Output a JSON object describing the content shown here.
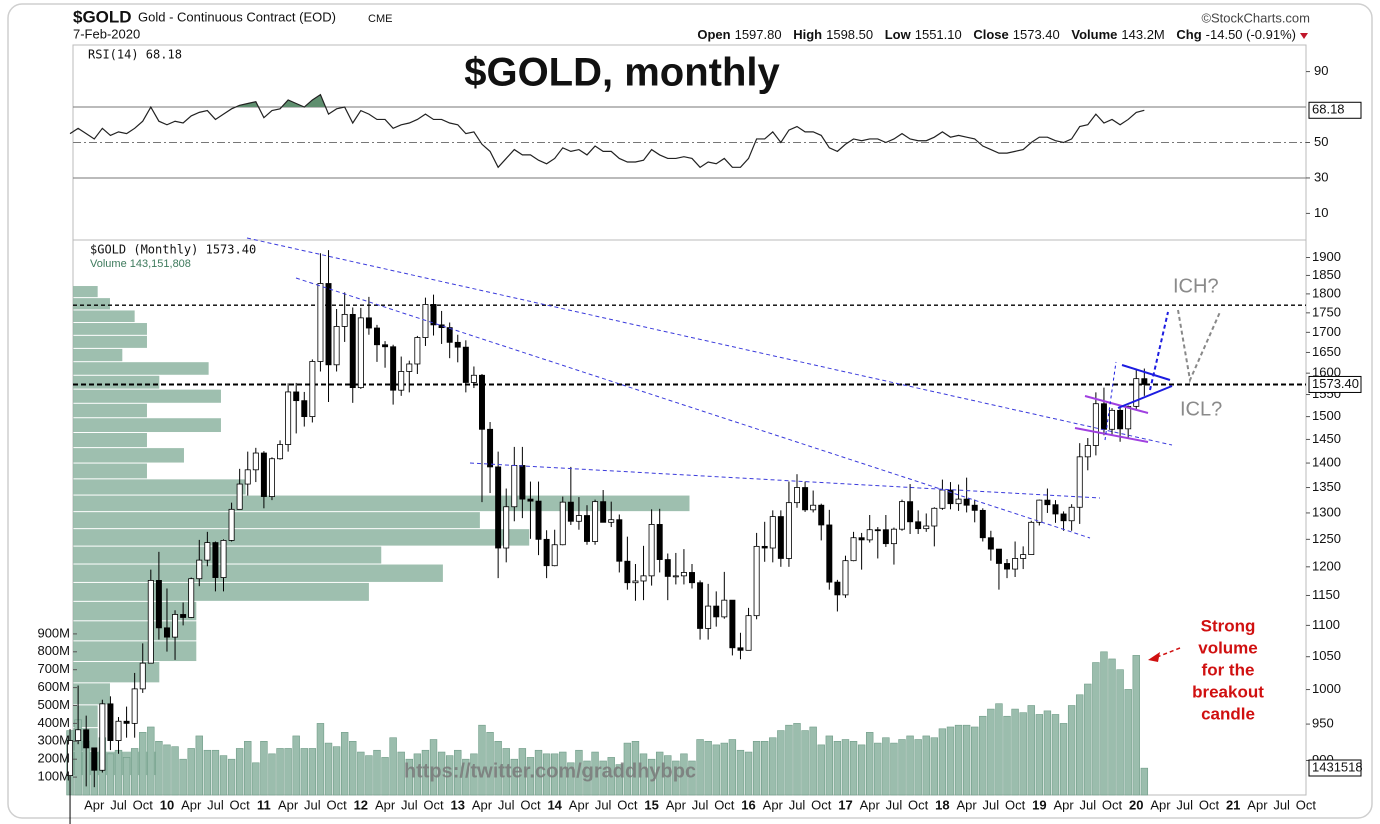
{
  "header": {
    "symbol": "$GOLD",
    "name": "Gold - Continuous Contract (EOD)",
    "exchange": "CME",
    "date": "7-Feb-2020",
    "copyright": "©StockCharts.com",
    "quote": [
      [
        "Open",
        "1597.80"
      ],
      [
        "High",
        "1598.50"
      ],
      [
        "Low",
        "1551.10"
      ],
      [
        "Close",
        "1573.40"
      ],
      [
        "Volume",
        "143.2M"
      ],
      [
        "Chg",
        "-14.50 (-0.91%)"
      ]
    ]
  },
  "chart_data": {
    "type": "candlestick",
    "title": "$GOLD, monthly",
    "series_label": "$GOLD (Monthly) 1573.40",
    "price_tag": "1573.40",
    "log_scale": true,
    "categories": [
      null,
      null,
      null,
      "Apr",
      null,
      null,
      "Jul",
      null,
      null,
      "Oct",
      null,
      null,
      "10",
      null,
      null,
      "Apr",
      null,
      null,
      "Jul",
      null,
      null,
      "Oct",
      null,
      null,
      "11",
      null,
      null,
      "Apr",
      null,
      null,
      "Jul",
      null,
      null,
      "Oct",
      null,
      null,
      "12",
      null,
      null,
      "Apr",
      null,
      null,
      "Jul",
      null,
      null,
      "Oct",
      null,
      null,
      "13",
      null,
      null,
      "Apr",
      null,
      null,
      "Jul",
      null,
      null,
      "Oct",
      null,
      null,
      "14",
      null,
      null,
      "Apr",
      null,
      null,
      "Jul",
      null,
      null,
      "Oct",
      null,
      null,
      "15",
      null,
      null,
      "Apr",
      null,
      null,
      "Jul",
      null,
      null,
      "Oct",
      null,
      null,
      "16",
      null,
      null,
      "Apr",
      null,
      null,
      "Jul",
      null,
      null,
      "Oct",
      null,
      null,
      "17",
      null,
      null,
      "Apr",
      null,
      null,
      "Jul",
      null,
      null,
      "Oct",
      null,
      null,
      "18",
      null,
      null,
      "Apr",
      null,
      null,
      "Jul",
      null,
      null,
      "Oct",
      null,
      null,
      "19",
      null,
      null,
      "Apr",
      null,
      null,
      "Jul",
      null,
      null,
      "Oct",
      null,
      null,
      "20",
      null,
      null,
      "Apr",
      null,
      null,
      "Jul",
      null,
      null,
      "Oct",
      null,
      null,
      "21",
      null,
      null,
      "Apr",
      null,
      null,
      "Jul",
      null,
      null,
      "Oct",
      null
    ],
    "open": [
      880,
      927,
      942,
      917,
      887,
      979,
      927,
      954,
      951,
      1001,
      1040,
      1176,
      1096,
      1081,
      1118,
      1113,
      1179,
      1212,
      1244,
      1181,
      1248,
      1307,
      1357,
      1386,
      1421,
      1332,
      1409,
      1439,
      1556,
      1536,
      1500,
      1628,
      1828,
      1620,
      1715,
      1746,
      1566,
      1737,
      1711,
      1669,
      1664,
      1560,
      1604,
      1622,
      1687,
      1772,
      1719,
      1712,
      1675,
      1663,
      1578,
      1595,
      1472,
      1392,
      1234,
      1312,
      1395,
      1327,
      1323,
      1250,
      1202,
      1240,
      1321,
      1284,
      1295,
      1246,
      1322,
      1282,
      1287,
      1210,
      1172,
      1175,
      1184,
      1278,
      1213,
      1183,
      1184,
      1190,
      1172,
      1095,
      1132,
      1114,
      1142,
      1064,
      1060,
      1116,
      1237,
      1234,
      1293,
      1215,
      1320,
      1350,
      1306,
      1315,
      1277,
      1173,
      1151,
      1211,
      1253,
      1249,
      1268,
      1268,
      1242,
      1269,
      1322,
      1283,
      1270,
      1275,
      1309,
      1345,
      1318,
      1327,
      1315,
      1305,
      1253,
      1232,
      1206,
      1196,
      1215,
      1222,
      1282,
      1325,
      1316,
      1298,
      1285,
      1311,
      1413,
      1437,
      1529,
      1472,
      1514,
      1473,
      1523,
      1587,
      null,
      null,
      null,
      null,
      null,
      null,
      null,
      null,
      null,
      null,
      null,
      null,
      null,
      null,
      null,
      null,
      null,
      null,
      null,
      null,
      null
    ],
    "high": [
      943,
      1006,
      962,
      915,
      985,
      990,
      960,
      975,
      1025,
      1071,
      1195,
      1227,
      1162,
      1125,
      1138,
      1181,
      1249,
      1264,
      1246,
      1250,
      1320,
      1388,
      1424,
      1432,
      1425,
      1412,
      1448,
      1576,
      1577,
      1556,
      1633,
      1912,
      1921,
      1760,
      1804,
      1764,
      1763,
      1792,
      1719,
      1678,
      1669,
      1640,
      1630,
      1691,
      1790,
      1798,
      1755,
      1725,
      1694,
      1680,
      1616,
      1598,
      1488,
      1424,
      1348,
      1434,
      1434,
      1362,
      1362,
      1267,
      1268,
      1332,
      1392,
      1331,
      1315,
      1326,
      1345,
      1322,
      1297,
      1255,
      1205,
      1238,
      1307,
      1308,
      1224,
      1225,
      1232,
      1205,
      1176,
      1170,
      1157,
      1191,
      1142,
      1088,
      1129,
      1262,
      1283,
      1305,
      1305,
      1362,
      1377,
      1362,
      1344,
      1318,
      1306,
      1177,
      1220,
      1264,
      1262,
      1296,
      1273,
      1296,
      1272,
      1326,
      1357,
      1305,
      1299,
      1311,
      1366,
      1361,
      1356,
      1370,
      1326,
      1309,
      1266,
      1224,
      1214,
      1246,
      1237,
      1285,
      1326,
      1348,
      1325,
      1303,
      1317,
      1442,
      1453,
      1555,
      1566,
      1519,
      1520,
      1525,
      1611,
      1611,
      null,
      null,
      null,
      null,
      null,
      null,
      null,
      null,
      null,
      null,
      null,
      null,
      null,
      null,
      null,
      null,
      null,
      null,
      null,
      null,
      null
    ],
    "low": [
      802,
      922,
      866,
      865,
      884,
      914,
      909,
      931,
      931,
      995,
      1041,
      1077,
      1058,
      1045,
      1100,
      1112,
      1166,
      1201,
      1157,
      1157,
      1246,
      1309,
      1334,
      1361,
      1309,
      1325,
      1407,
      1424,
      1463,
      1478,
      1487,
      1604,
      1533,
      1604,
      1676,
      1531,
      1563,
      1694,
      1627,
      1613,
      1527,
      1547,
      1555,
      1598,
      1666,
      1692,
      1671,
      1636,
      1626,
      1555,
      1565,
      1321,
      1339,
      1180,
      1208,
      1284,
      1290,
      1251,
      1221,
      1180,
      1201,
      1239,
      1277,
      1268,
      1240,
      1240,
      1283,
      1273,
      1190,
      1160,
      1141,
      1142,
      1167,
      1190,
      1142,
      1169,
      1169,
      1162,
      1077,
      1077,
      1098,
      1111,
      1052,
      1046,
      1061,
      1110,
      1209,
      1208,
      1200,
      1200,
      1310,
      1302,
      1301,
      1248,
      1160,
      1123,
      1146,
      1210,
      1195,
      1244,
      1215,
      1236,
      1204,
      1266,
      1260,
      1260,
      1264,
      1237,
      1306,
      1307,
      1304,
      1301,
      1282,
      1246,
      1211,
      1160,
      1180,
      1182,
      1196,
      1222,
      1276,
      1300,
      1281,
      1266,
      1266,
      1279,
      1385,
      1416,
      1459,
      1458,
      1445,
      1454,
      1517,
      1547,
      null,
      null,
      null,
      null,
      null,
      null,
      null,
      null,
      null,
      null,
      null,
      null,
      null,
      null,
      null,
      null,
      null,
      null,
      null,
      null,
      null
    ],
    "close": [
      927,
      942,
      917,
      887,
      979,
      927,
      954,
      951,
      1001,
      1040,
      1176,
      1096,
      1081,
      1118,
      1113,
      1179,
      1212,
      1244,
      1181,
      1248,
      1307,
      1357,
      1386,
      1421,
      1332,
      1409,
      1439,
      1556,
      1536,
      1500,
      1628,
      1828,
      1620,
      1715,
      1746,
      1566,
      1737,
      1711,
      1669,
      1664,
      1560,
      1604,
      1622,
      1687,
      1772,
      1719,
      1712,
      1675,
      1663,
      1578,
      1595,
      1472,
      1392,
      1234,
      1312,
      1395,
      1327,
      1323,
      1250,
      1202,
      1240,
      1321,
      1284,
      1295,
      1246,
      1322,
      1282,
      1287,
      1210,
      1172,
      1175,
      1184,
      1278,
      1213,
      1183,
      1184,
      1190,
      1172,
      1095,
      1132,
      1114,
      1142,
      1064,
      1060,
      1116,
      1237,
      1234,
      1293,
      1215,
      1320,
      1350,
      1306,
      1315,
      1277,
      1173,
      1151,
      1211,
      1253,
      1249,
      1268,
      1268,
      1242,
      1269,
      1322,
      1283,
      1270,
      1275,
      1309,
      1345,
      1318,
      1327,
      1315,
      1305,
      1253,
      1232,
      1206,
      1196,
      1215,
      1222,
      1282,
      1325,
      1316,
      1298,
      1285,
      1311,
      1413,
      1437,
      1529,
      1472,
      1514,
      1473,
      1523,
      1587,
      1573.4,
      null,
      null,
      null,
      null,
      null,
      null,
      null,
      null,
      null,
      null,
      null,
      null,
      null,
      null,
      null,
      null,
      null,
      null,
      null,
      null,
      null
    ],
    "ylim": [
      855,
      1950
    ],
    "yticks": [
      900,
      950,
      1000,
      1050,
      1100,
      1150,
      1200,
      1250,
      1300,
      1350,
      1400,
      1450,
      1500,
      1550,
      1600,
      1650,
      1700,
      1750,
      1800,
      1850,
      1900
    ],
    "price_levels": [
      1770,
      1573.4
    ],
    "volume_by_price": {
      "color": "#8db4a1",
      "bins": [
        880,
        912.5,
        945,
        977.5,
        1010,
        1042.5,
        1075,
        1107.5,
        1140,
        1172.5,
        1205,
        1237.5,
        1270,
        1302.5,
        1335,
        1367.5,
        1400,
        1432.5,
        1465,
        1497.5,
        1530,
        1562.5,
        1595,
        1627.5,
        1660,
        1692.5,
        1725,
        1757.5,
        1790,
        1822.5
      ],
      "values": [
        7,
        2,
        2,
        3,
        7,
        10,
        10,
        10,
        24,
        30,
        25,
        37,
        33,
        50,
        14,
        6,
        9,
        6,
        12,
        6,
        12,
        7,
        11,
        4,
        6,
        6,
        5,
        3,
        2
      ],
      "xlim": [
        0,
        100
      ]
    },
    "volume": {
      "label": "Volume 143,151,808",
      "tag": "1431518",
      "color": "#9bbdad",
      "values": [
        360,
        420,
        300,
        240,
        320,
        230,
        250,
        210,
        260,
        350,
        380,
        300,
        280,
        270,
        200,
        260,
        330,
        250,
        250,
        220,
        200,
        260,
        300,
        180,
        300,
        230,
        260,
        260,
        330,
        260,
        260,
        400,
        290,
        270,
        350,
        300,
        240,
        220,
        250,
        210,
        320,
        240,
        200,
        230,
        250,
        310,
        240,
        220,
        250,
        200,
        230,
        390,
        350,
        300,
        260,
        200,
        260,
        210,
        250,
        230,
        230,
        240,
        180,
        250,
        190,
        240,
        190,
        210,
        170,
        290,
        300,
        230,
        200,
        240,
        220,
        190,
        230,
        190,
        310,
        300,
        280,
        290,
        310,
        250,
        240,
        300,
        300,
        320,
        360,
        390,
        400,
        360,
        380,
        280,
        330,
        300,
        310,
        300,
        280,
        350,
        290,
        320,
        290,
        310,
        330,
        310,
        330,
        320,
        370,
        380,
        390,
        390,
        380,
        440,
        480,
        510,
        440,
        480,
        460,
        500,
        450,
        470,
        450,
        400,
        500,
        560,
        620,
        740,
        800,
        760,
        700,
        590,
        780,
        150,
        null,
        null,
        null,
        null,
        null,
        null,
        null,
        null,
        null,
        null,
        null,
        null,
        null,
        null,
        null,
        null,
        null,
        null,
        null,
        null,
        null
      ],
      "ylim": [
        0,
        1000
      ],
      "yticks": [
        {
          "value": 100,
          "label": "100M"
        },
        {
          "value": 200,
          "label": "200M"
        },
        {
          "value": 300,
          "label": "300M"
        },
        {
          "value": 400,
          "label": "400M"
        },
        {
          "value": 500,
          "label": "500M"
        },
        {
          "value": 600,
          "label": "600M"
        },
        {
          "value": 700,
          "label": "700M"
        },
        {
          "value": 800,
          "label": "800M"
        },
        {
          "value": 900,
          "label": "900M"
        }
      ]
    },
    "rsi": {
      "label": "RSI(14) 68.18",
      "color": "#222222",
      "overbought_color": "#5f8f6f",
      "values": [
        55,
        58,
        55,
        52,
        58,
        54,
        56,
        55,
        58,
        62,
        70,
        62,
        60,
        62,
        61,
        65,
        67,
        68,
        63,
        66,
        69,
        71,
        72,
        73,
        64,
        68,
        69,
        74,
        72,
        70,
        74,
        77,
        66,
        69,
        70,
        61,
        68,
        66,
        63,
        63,
        58,
        60,
        61,
        63,
        66,
        63,
        63,
        61,
        60,
        55,
        56,
        49,
        45,
        36,
        41,
        46,
        43,
        43,
        40,
        38,
        41,
        47,
        45,
        46,
        43,
        48,
        45,
        45,
        41,
        39,
        39,
        40,
        46,
        43,
        41,
        41,
        42,
        41,
        36,
        39,
        38,
        41,
        36,
        36,
        41,
        52,
        52,
        56,
        50,
        57,
        59,
        56,
        56,
        54,
        47,
        45,
        49,
        52,
        51,
        52,
        52,
        50,
        52,
        55,
        52,
        51,
        51,
        53,
        56,
        53,
        54,
        53,
        52,
        48,
        46,
        44,
        44,
        45,
        46,
        50,
        53,
        53,
        51,
        50,
        52,
        59,
        60,
        66,
        61,
        63,
        60,
        63,
        67,
        68.18,
        null,
        null,
        null,
        null,
        null,
        null,
        null,
        null,
        null,
        null,
        null,
        null,
        null,
        null,
        null,
        null,
        null,
        null,
        null,
        null,
        null
      ],
      "ylim": [
        -5,
        105
      ],
      "yticks": [
        10,
        30,
        50,
        90
      ],
      "levels": [
        70,
        50,
        30
      ]
    },
    "annotations": {
      "ich": "ICH?",
      "icl": "ICL?",
      "strong": [
        "Strong",
        "volume",
        "for the",
        "breakout",
        "candle"
      ],
      "watermark": "https://twitter.com/graddhybpc"
    }
  }
}
